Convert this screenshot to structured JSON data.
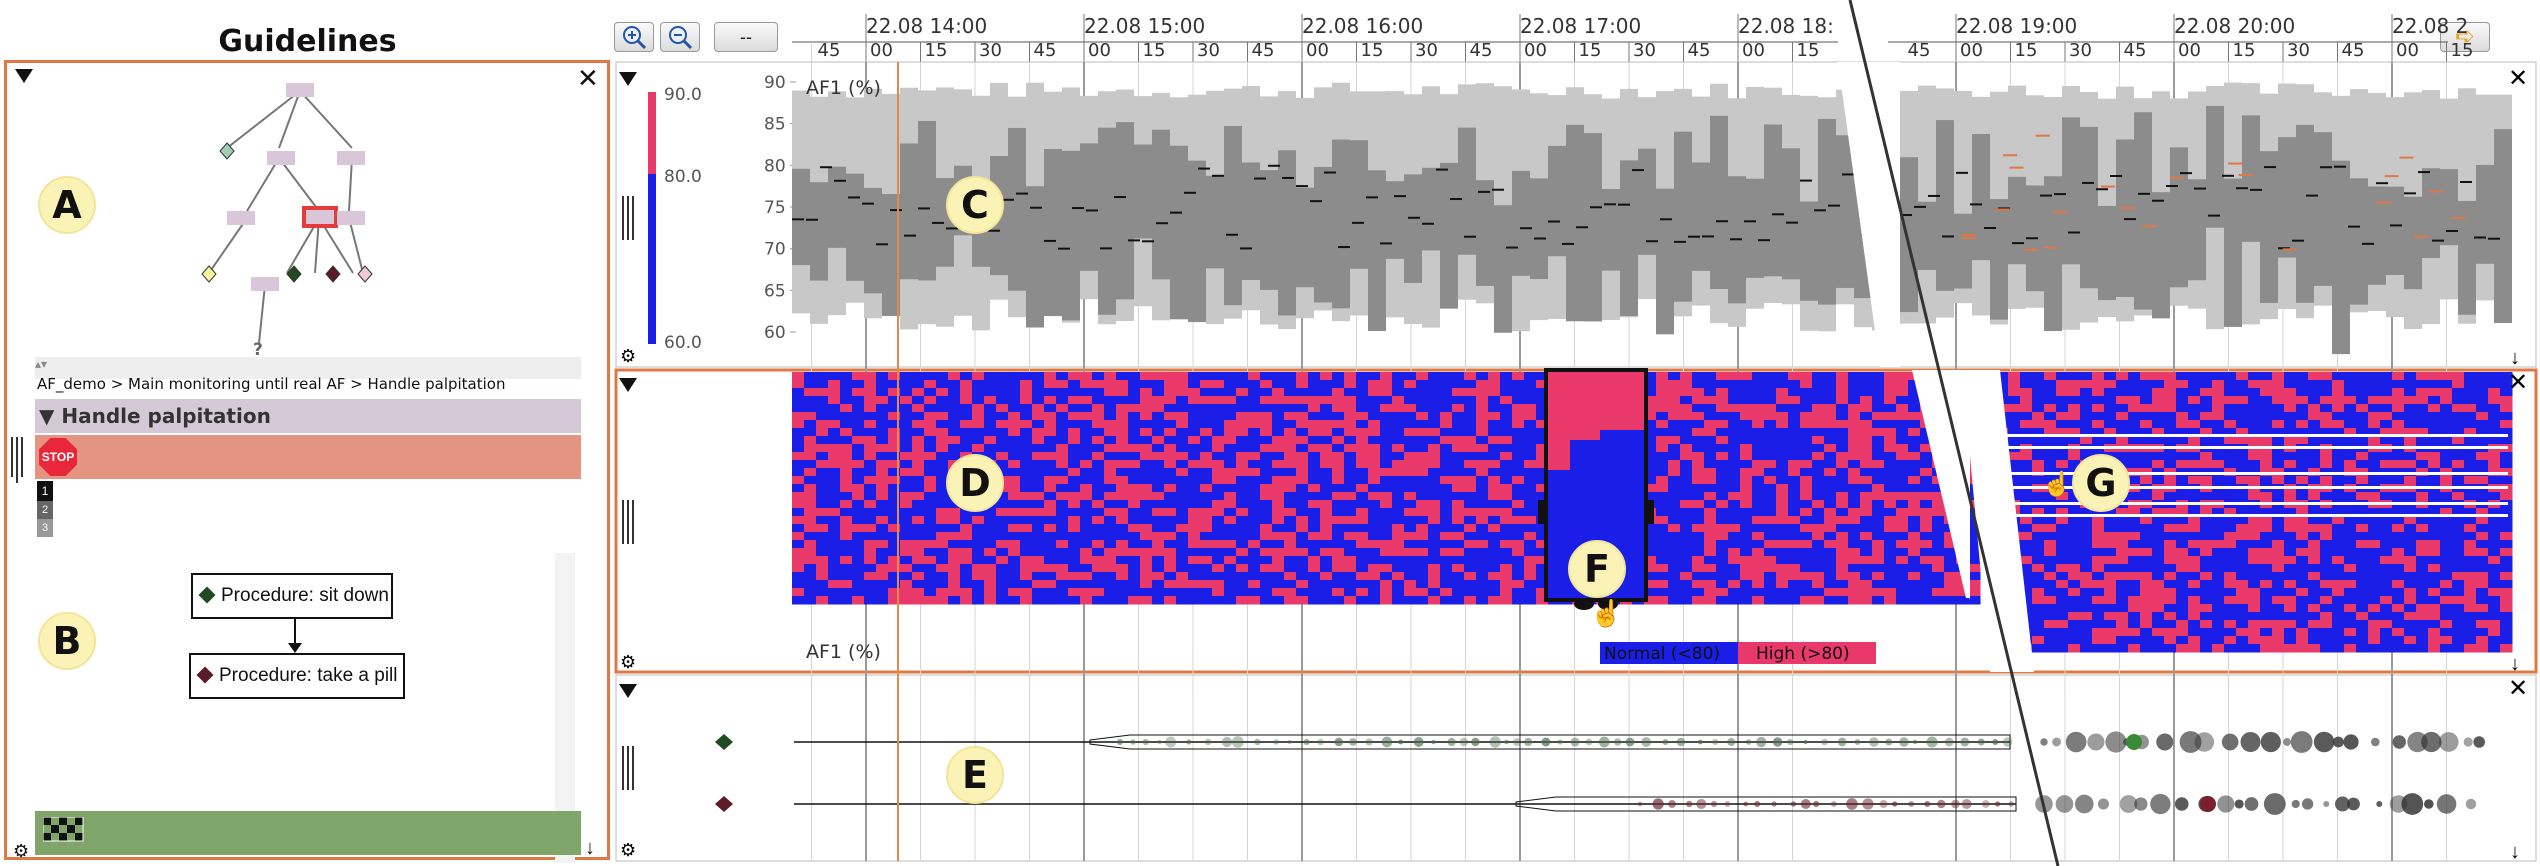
{
  "guidelines": {
    "title": "Guidelines",
    "breadcrumb": "AF_demo > Main monitoring until real AF > Handle palpitation",
    "section_title": "Handle palpitation",
    "stop_label": "STOP",
    "steps": [
      "1",
      "2",
      "3"
    ],
    "question_mark": "?",
    "procedures": [
      "Procedure: sit down",
      "Procedure: take a pill"
    ]
  },
  "toolbar": {
    "zoom_in": "zoom-in-icon",
    "zoom_out": "zoom-out-icon",
    "dash_label": "--",
    "export_icon": "arrow-right-icon"
  },
  "timeline": {
    "hours_left": [
      "22.08 14:00",
      "22.08 15:00",
      "22.08 16:00",
      "22.08 17:00",
      "22.08 18:"
    ],
    "hours_right": [
      "22.08 19:00",
      "22.08 20:00",
      "22.08 2"
    ],
    "minutes": [
      "45",
      "00",
      "15",
      "30",
      "45"
    ]
  },
  "panels": {
    "c": {
      "label": "AF1 (%)",
      "y_ticks": [
        "90",
        "85",
        "80",
        "75",
        "70",
        "65",
        "60"
      ],
      "scale_labels": [
        "90.0",
        "80.0",
        "60.0"
      ]
    },
    "d": {
      "label": "AF1 (%)",
      "legend": [
        "Normal (<80)",
        "High (>80)"
      ]
    }
  },
  "callouts": [
    "A",
    "B",
    "C",
    "D",
    "E",
    "F",
    "G"
  ],
  "colors": {
    "accent": "#e07845",
    "normal": "#1a1ee6",
    "high": "#e8396a",
    "success": "#7fa56a",
    "band_light": "#c8c8c8",
    "band_dark": "#8c8c8c"
  }
}
